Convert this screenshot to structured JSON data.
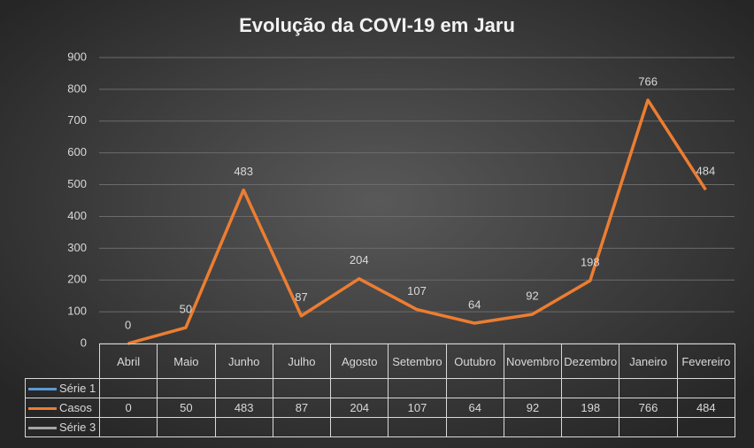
{
  "chart_data": {
    "type": "line",
    "title": "Evolução da COVI-19 em Jaru",
    "categories": [
      "Abril",
      "Maio",
      "Junho",
      "Julho",
      "Agosto",
      "Setembro",
      "Outubro",
      "Novembro",
      "Dezembro",
      "Janeiro",
      "Fevereiro"
    ],
    "series": [
      {
        "name": "Série 1",
        "color": "#5b9bd5",
        "values": [
          null,
          null,
          null,
          null,
          null,
          null,
          null,
          null,
          null,
          null,
          null
        ]
      },
      {
        "name": "Casos",
        "color": "#ed7d31",
        "values": [
          0,
          50,
          483,
          87,
          204,
          107,
          64,
          92,
          198,
          766,
          484
        ]
      },
      {
        "name": "Série 3",
        "color": "#a5a5a5",
        "values": [
          null,
          null,
          null,
          null,
          null,
          null,
          null,
          null,
          null,
          null,
          null
        ]
      }
    ],
    "ylim": [
      0,
      900
    ],
    "yticks": [
      0,
      100,
      200,
      300,
      400,
      500,
      600,
      700,
      800,
      900
    ],
    "grid": true,
    "data_table": true
  }
}
